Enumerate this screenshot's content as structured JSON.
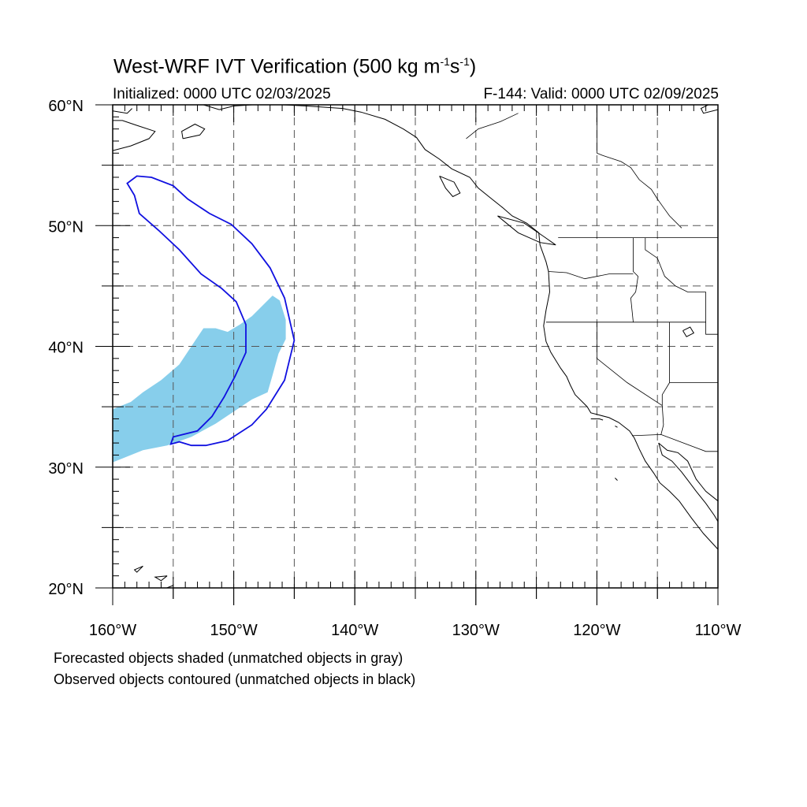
{
  "title": {
    "prefix": "West-WRF IVT Verification (500 kg m",
    "exp1": "-1",
    "mid": "s",
    "exp2": "-1",
    "suffix": ")"
  },
  "initialized": "Initialized: 0000 UTC 02/03/2025",
  "valid": "F-144: Valid: 0000 UTC 02/09/2025",
  "caption_forecast": "Forecasted objects shaded (unmatched objects in gray)",
  "caption_observed": "Observed objects contoured (unmatched objects in black)",
  "map": {
    "lon_range": [
      -160,
      -110
    ],
    "lat_range": [
      20,
      60
    ],
    "lon_ticks": [
      {
        "value": -160,
        "label": "160°W"
      },
      {
        "value": -150,
        "label": "150°W"
      },
      {
        "value": -140,
        "label": "140°W"
      },
      {
        "value": -130,
        "label": "130°W"
      },
      {
        "value": -120,
        "label": "120°W"
      },
      {
        "value": -110,
        "label": "110°W"
      }
    ],
    "lat_ticks": [
      {
        "value": 20,
        "label": "20°N"
      },
      {
        "value": 30,
        "label": "30°N"
      },
      {
        "value": 40,
        "label": "40°N"
      },
      {
        "value": 50,
        "label": "50°N"
      },
      {
        "value": 60,
        "label": "60°N"
      }
    ],
    "grid_lon": [
      -155,
      -150,
      -145,
      -140,
      -135,
      -130,
      -125,
      -120,
      -115
    ],
    "grid_lat": [
      25,
      30,
      35,
      40,
      45,
      50,
      55
    ],
    "forecast_color": "#87ceeb",
    "observed_color": "#1010e0",
    "forecast_object": [
      [
        -160,
        34.8
      ],
      [
        -158.5,
        35.4
      ],
      [
        -157.5,
        36.2
      ],
      [
        -156,
        37.2
      ],
      [
        -154.5,
        38.5
      ],
      [
        -153.5,
        40.0
      ],
      [
        -152.5,
        41.5
      ],
      [
        -151.5,
        41.5
      ],
      [
        -150.5,
        41.2
      ],
      [
        -149.5,
        41.8
      ],
      [
        -148.5,
        42.5
      ],
      [
        -147.5,
        43.5
      ],
      [
        -146.8,
        44.2
      ],
      [
        -146.2,
        43.8
      ],
      [
        -145.7,
        42.2
      ],
      [
        -145.7,
        40.6
      ],
      [
        -146.3,
        39.4
      ],
      [
        -146.8,
        37.6
      ],
      [
        -147.2,
        36.2
      ],
      [
        -148.5,
        35.6
      ],
      [
        -150.0,
        34.6
      ],
      [
        -151.5,
        33.6
      ],
      [
        -153.5,
        32.5
      ],
      [
        -155.5,
        31.8
      ],
      [
        -157.5,
        31.4
      ],
      [
        -159.0,
        30.8
      ],
      [
        -160,
        30.4
      ]
    ],
    "observed_object": [
      [
        -158.8,
        53.5
      ],
      [
        -158.0,
        54.1
      ],
      [
        -156.8,
        54.0
      ],
      [
        -155.0,
        53.3
      ],
      [
        -153.8,
        52.2
      ],
      [
        -152.0,
        51.0
      ],
      [
        -150.2,
        50.1
      ],
      [
        -148.5,
        48.5
      ],
      [
        -147.0,
        46.5
      ],
      [
        -145.8,
        44.0
      ],
      [
        -145.0,
        40.5
      ],
      [
        -145.8,
        37.2
      ],
      [
        -147.3,
        34.8
      ],
      [
        -148.5,
        33.5
      ],
      [
        -150.5,
        32.2
      ],
      [
        -152.3,
        31.8
      ],
      [
        -153.5,
        31.8
      ],
      [
        -154.5,
        32.1
      ],
      [
        -155.2,
        31.9
      ],
      [
        -155.0,
        32.5
      ],
      [
        -153.0,
        33.0
      ],
      [
        -151.8,
        34.2
      ],
      [
        -150.8,
        35.8
      ],
      [
        -149.9,
        37.5
      ],
      [
        -149.0,
        39.5
      ],
      [
        -149.0,
        41.8
      ],
      [
        -149.8,
        43.7
      ],
      [
        -151.0,
        44.8
      ],
      [
        -152.7,
        46.0
      ],
      [
        -154.5,
        48.0
      ],
      [
        -156.2,
        49.6
      ],
      [
        -157.8,
        51.0
      ],
      [
        -158.2,
        52.5
      ],
      [
        -158.8,
        53.5
      ]
    ],
    "coastlines": [
      [
        [
          -160,
          56.2
        ],
        [
          -158.5,
          56.6
        ],
        [
          -157,
          57.2
        ],
        [
          -156.5,
          57.8
        ],
        [
          -158,
          58.3
        ],
        [
          -159.2,
          58.7
        ],
        [
          -160,
          58.7
        ]
      ],
      [
        [
          -160,
          59.5
        ],
        [
          -158.8,
          59.3
        ],
        [
          -158.4,
          59.7
        ]
      ],
      [
        [
          -154.2,
          57.2
        ],
        [
          -152.8,
          57.5
        ],
        [
          -152.4,
          58.0
        ],
        [
          -153.2,
          58.4
        ],
        [
          -154.3,
          57.8
        ],
        [
          -154.2,
          57.2
        ]
      ],
      [
        [
          -152.5,
          60
        ],
        [
          -151.2,
          59.6
        ],
        [
          -150.0,
          59.9
        ],
        [
          -148.5,
          60
        ],
        [
          -146.0,
          60
        ],
        [
          -144.0,
          59.9
        ],
        [
          -141.0,
          59.7
        ],
        [
          -139.5,
          59.4
        ],
        [
          -137.5,
          58.8
        ],
        [
          -136.0,
          58.0
        ],
        [
          -134.9,
          57.3
        ],
        [
          -134.2,
          56.3
        ],
        [
          -133.0,
          55.5
        ],
        [
          -132.0,
          54.7
        ],
        [
          -130.5,
          54.0
        ],
        [
          -129.8,
          53.1
        ],
        [
          -128.8,
          52.3
        ],
        [
          -127.8,
          51.5
        ],
        [
          -127.0,
          50.8
        ],
        [
          -125.8,
          50.2
        ],
        [
          -124.8,
          49.4
        ],
        [
          -124.7,
          48.4
        ],
        [
          -124.2,
          47.0
        ],
        [
          -124.0,
          46.2
        ],
        [
          -123.9,
          44.5
        ],
        [
          -124.2,
          43.0
        ],
        [
          -124.4,
          41.7
        ],
        [
          -124.2,
          40.4
        ],
        [
          -123.8,
          39.5
        ],
        [
          -123.0,
          38.2
        ],
        [
          -122.5,
          37.5
        ],
        [
          -122.2,
          36.8
        ],
        [
          -121.8,
          36.0
        ],
        [
          -120.8,
          35.0
        ],
        [
          -120.5,
          34.5
        ],
        [
          -119.0,
          34.1
        ],
        [
          -118.2,
          33.7
        ],
        [
          -117.3,
          33.0
        ],
        [
          -116.9,
          32.4
        ],
        [
          -116.5,
          31.5
        ],
        [
          -116.0,
          30.5
        ],
        [
          -115.3,
          29.5
        ],
        [
          -114.8,
          28.7
        ],
        [
          -114.0,
          28.0
        ],
        [
          -113.2,
          27.2
        ],
        [
          -112.2,
          25.8
        ],
        [
          -111.2,
          24.5
        ],
        [
          -110,
          23.2
        ]
      ],
      [
        [
          -114.9,
          32.0
        ],
        [
          -114.6,
          31.0
        ],
        [
          -113.8,
          30.5
        ],
        [
          -113.0,
          29.6
        ],
        [
          -112.4,
          28.8
        ],
        [
          -111.8,
          28.0
        ],
        [
          -111.0,
          27.0
        ],
        [
          -110.3,
          26.0
        ],
        [
          -110,
          25.5
        ]
      ],
      [
        [
          -114.9,
          32.0
        ],
        [
          -114.2,
          31.4
        ],
        [
          -113.3,
          31.2
        ],
        [
          -112.5,
          30.5
        ],
        [
          -111.8,
          29.0
        ],
        [
          -111.0,
          28.0
        ],
        [
          -110,
          27.2
        ]
      ],
      [
        [
          -133.0,
          54.1
        ],
        [
          -131.8,
          53.6
        ],
        [
          -131.3,
          52.7
        ],
        [
          -131.9,
          52.4
        ],
        [
          -132.5,
          53.1
        ],
        [
          -133.0,
          54.1
        ]
      ],
      [
        [
          -128.2,
          50.8
        ],
        [
          -126.0,
          50.2
        ],
        [
          -124.4,
          49.1
        ],
        [
          -123.4,
          48.4
        ],
        [
          -124.7,
          48.6
        ],
        [
          -126.5,
          49.4
        ],
        [
          -128.2,
          50.8
        ]
      ],
      [
        [
          -110,
          59.6
        ],
        [
          -111.2,
          59.3
        ],
        [
          -111.4,
          59.7
        ],
        [
          -110.8,
          60
        ]
      ],
      [
        [
          -157.5,
          21.8
        ],
        [
          -158.2,
          21.5
        ],
        [
          -158.0,
          21.3
        ],
        [
          -157.5,
          21.8
        ]
      ],
      [
        [
          -155.5,
          21.0
        ],
        [
          -156.5,
          20.9
        ],
        [
          -156.0,
          20.6
        ],
        [
          -155.5,
          21.0
        ]
      ],
      [
        [
          -155.0,
          20.2
        ],
        [
          -155.8,
          19.9
        ],
        [
          -154.8,
          19.5
        ]
      ],
      [
        [
          -120.5,
          34.0
        ],
        [
          -119.8,
          34.0
        ],
        [
          -119.5,
          33.9
        ]
      ],
      [
        [
          -118.5,
          33.4
        ],
        [
          -118.3,
          33.3
        ]
      ],
      [
        [
          -118.5,
          29.1
        ],
        [
          -118.3,
          28.9
        ]
      ],
      [
        [
          -112.9,
          41.3
        ],
        [
          -112.3,
          41.6
        ],
        [
          -112.0,
          41.1
        ],
        [
          -112.6,
          40.8
        ],
        [
          -112.9,
          41.3
        ]
      ]
    ],
    "borders": [
      [
        [
          -123.2,
          49
        ],
        [
          -115,
          49
        ],
        [
          -110,
          49
        ]
      ],
      [
        [
          -124.2,
          42
        ],
        [
          -120,
          42
        ],
        [
          -117,
          42
        ],
        [
          -111,
          42
        ]
      ],
      [
        [
          -124.0,
          46.2
        ],
        [
          -122.5,
          46.1
        ],
        [
          -121.0,
          45.6
        ],
        [
          -119.0,
          46.0
        ],
        [
          -117.0,
          46.0
        ]
      ],
      [
        [
          -117,
          49
        ],
        [
          -117,
          46.2
        ],
        [
          -116.6,
          45.8
        ],
        [
          -116.8,
          44.5
        ],
        [
          -117.2,
          44.0
        ],
        [
          -117,
          42
        ]
      ],
      [
        [
          -116,
          49
        ],
        [
          -116,
          48
        ],
        [
          -115,
          47.3
        ],
        [
          -114.4,
          45.8
        ],
        [
          -113.5,
          45.0
        ],
        [
          -112.5,
          44.5
        ],
        [
          -111.0,
          44.5
        ]
      ],
      [
        [
          -111,
          44.5
        ],
        [
          -111,
          42
        ],
        [
          -111,
          41
        ],
        [
          -110,
          41
        ]
      ],
      [
        [
          -120,
          42
        ],
        [
          -120,
          39
        ],
        [
          -117.5,
          37.0
        ],
        [
          -114.6,
          35.1
        ]
      ],
      [
        [
          -114,
          42
        ],
        [
          -114,
          37
        ],
        [
          -114.6,
          36.0
        ],
        [
          -114.6,
          35.1
        ]
      ],
      [
        [
          -114,
          37
        ],
        [
          -110,
          37
        ]
      ],
      [
        [
          -117.1,
          32.6
        ],
        [
          -114.7,
          32.7
        ],
        [
          -111.0,
          31.3
        ],
        [
          -110,
          31.3
        ]
      ],
      [
        [
          -114.6,
          35.1
        ],
        [
          -114.5,
          33.5
        ],
        [
          -114.7,
          32.7
        ]
      ],
      [
        [
          -120,
          56.0
        ],
        [
          -119.5,
          55.8
        ],
        [
          -118.0,
          55.3
        ],
        [
          -117.2,
          54.8
        ],
        [
          -116.5,
          53.8
        ],
        [
          -115.5,
          53.0
        ],
        [
          -115.0,
          52.2
        ],
        [
          -114.5,
          51.5
        ],
        [
          -114.0,
          50.8
        ],
        [
          -113.0,
          49.8
        ]
      ],
      [
        [
          -120,
          60
        ],
        [
          -120,
          56.0
        ]
      ],
      [
        [
          -130.8,
          57.2
        ],
        [
          -129.8,
          58.0
        ],
        [
          -128.0,
          58.6
        ],
        [
          -126.5,
          59.3
        ]
      ],
      [
        [
          -141,
          60
        ],
        [
          -141,
          59.7
        ]
      ]
    ]
  }
}
